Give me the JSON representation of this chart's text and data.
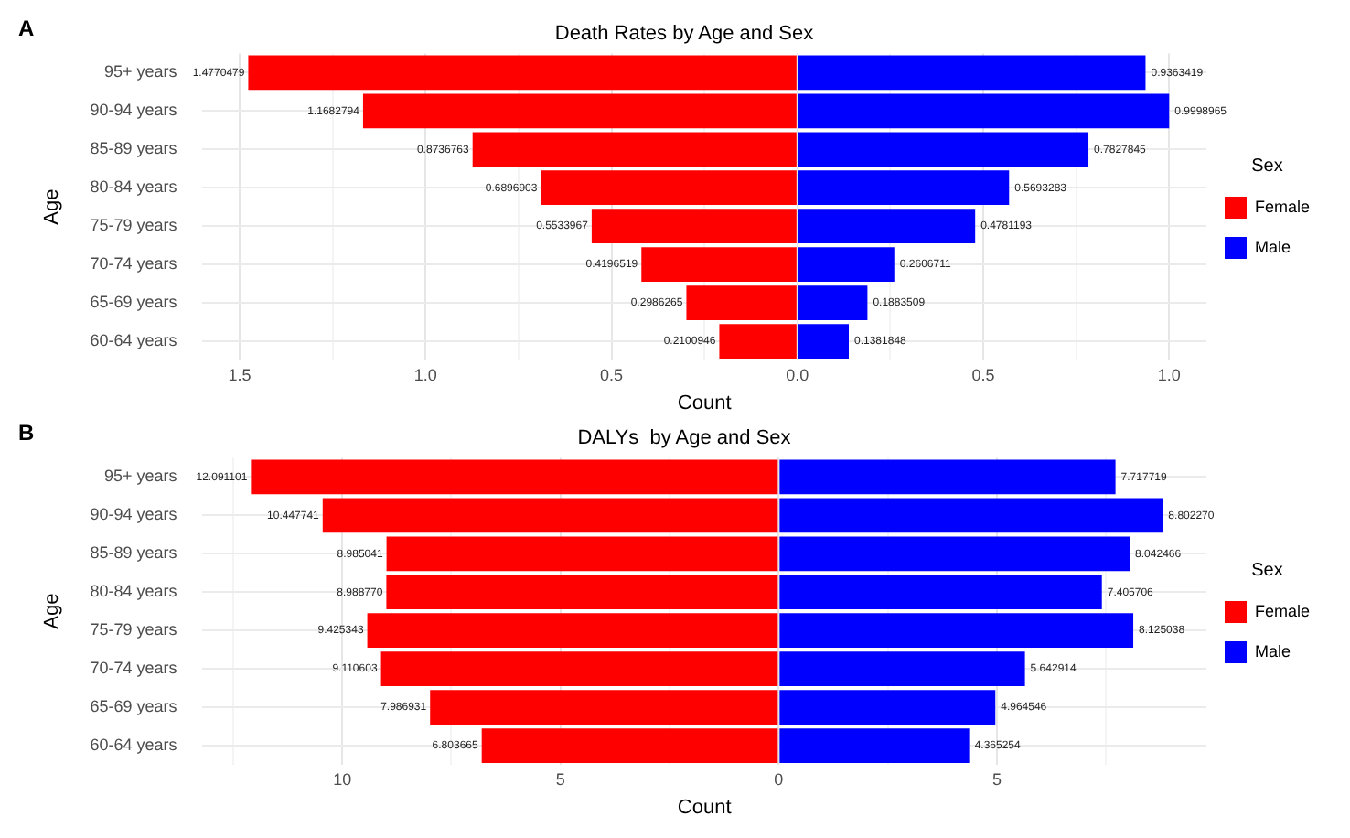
{
  "chart_data": [
    {
      "type": "bar",
      "orientation": "horizontal",
      "title": "Death Rates by Age and Sex",
      "xlabel": "Count",
      "ylabel": "Age",
      "legend_title": "Sex",
      "legend": "right",
      "grid": true,
      "annotations": [
        "A"
      ],
      "categories": [
        "95+ years",
        "90-94 years",
        "85-89 years",
        "80-84 years",
        "75-79 years",
        "70-74 years",
        "65-69 years",
        "60-64 years"
      ],
      "xlim": [
        -1.6,
        1.1
      ],
      "xticks": [
        {
          "value": -1.5,
          "label": "1.5"
        },
        {
          "value": -1.25,
          "label": null
        },
        {
          "value": -1,
          "label": "1.0"
        },
        {
          "value": -0.75,
          "label": null
        },
        {
          "value": -0.5,
          "label": "0.5"
        },
        {
          "value": -0.25,
          "label": null
        },
        {
          "value": 0,
          "label": "0.0"
        },
        {
          "value": 0.25,
          "label": null
        },
        {
          "value": 0.5,
          "label": "0.5"
        },
        {
          "value": 0.75,
          "label": null
        },
        {
          "value": 1,
          "label": "1.0"
        }
      ],
      "series": [
        {
          "name": "Female",
          "color": "#ff0000",
          "values": [
            1.4770479,
            1.1682794,
            0.8736763,
            0.6896903,
            0.5533967,
            0.4196519,
            0.2986265,
            0.2100946
          ],
          "base": [
            -1.4770479,
            -1.1682794,
            -0.8736763,
            -0.6896903,
            -0.5533967,
            -0.4196519,
            -0.2986265,
            -0.2100946
          ],
          "value_labels": [
            "1.4770479",
            "1.1682794",
            "0.8736763",
            "0.6896903",
            "0.5533967",
            "0.4196519",
            "0.2986265",
            "0.2100946"
          ]
        },
        {
          "name": "Male",
          "color": "#0000ff",
          "values": [
            0.9363419,
            0.9998965,
            0.7827845,
            0.5693283,
            0.4781193,
            0.2606711,
            0.1883509,
            0.1381848
          ],
          "value_labels": [
            "0.9363419",
            "0.9998965",
            "0.7827845",
            "0.5693283",
            "0.4781193",
            "0.2606711",
            "0.1883509",
            "0.1381848"
          ]
        }
      ]
    },
    {
      "type": "bar",
      "orientation": "horizontal",
      "title": "DALYs  by Age and Sex",
      "xlabel": "Count",
      "ylabel": "Age",
      "legend_title": "Sex",
      "legend": "right",
      "grid": true,
      "annotations": [
        "B"
      ],
      "categories": [
        "95+ years",
        "90-94 years",
        "85-89 years",
        "80-84 years",
        "75-79 years",
        "70-74 years",
        "65-69 years",
        "60-64 years"
      ],
      "xlim": [
        -13.2,
        9.8
      ],
      "xticks": [
        {
          "value": -12.5,
          "label": null
        },
        {
          "value": -10,
          "label": "10"
        },
        {
          "value": -7.5,
          "label": null
        },
        {
          "value": -5,
          "label": "5"
        },
        {
          "value": -2.5,
          "label": null
        },
        {
          "value": 0,
          "label": "0"
        },
        {
          "value": 2.5,
          "label": null
        },
        {
          "value": 5,
          "label": "5"
        },
        {
          "value": 7.5,
          "label": null
        }
      ],
      "series": [
        {
          "name": "Female",
          "color": "#ff0000",
          "values": [
            12.091101,
            10.447741,
            8.985041,
            8.98877,
            9.425343,
            9.110603,
            7.986931,
            6.803665
          ],
          "base": [
            -12.091101,
            -10.447741,
            -8.985041,
            -8.98877,
            -9.425343,
            -9.110603,
            -7.986931,
            -6.803665
          ],
          "value_labels": [
            "12.091101",
            "10.447741",
            "8.985041",
            "8.988770",
            "9.425343",
            "9.110603",
            "7.986931",
            "6.803665"
          ]
        },
        {
          "name": "Male",
          "color": "#0000ff",
          "values": [
            7.717719,
            8.80227,
            8.042466,
            7.405706,
            8.125038,
            5.642914,
            4.964546,
            4.365254
          ],
          "value_labels": [
            "7.717719",
            "8.802270",
            "8.042466",
            "7.405706",
            "8.125038",
            "5.642914",
            "4.964546",
            "4.365254"
          ]
        }
      ]
    }
  ]
}
